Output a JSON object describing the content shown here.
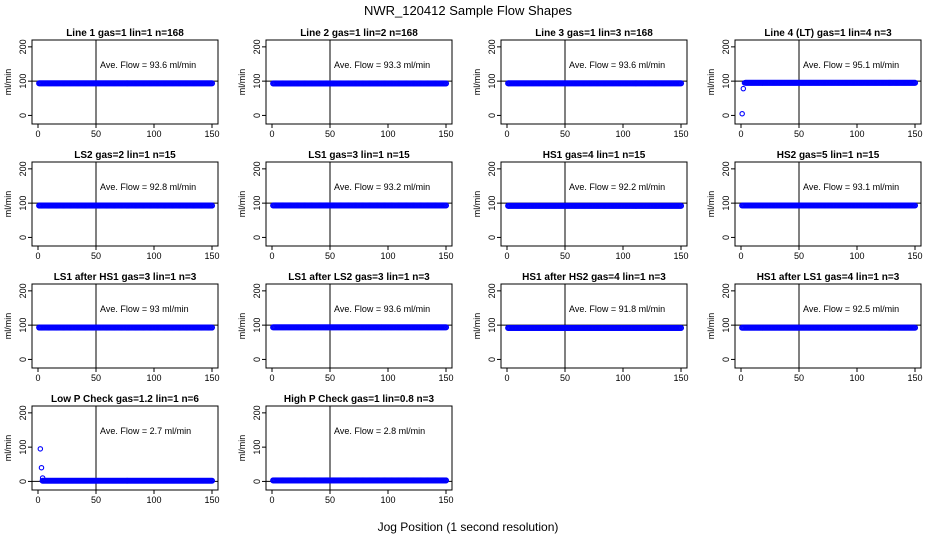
{
  "figure": {
    "title": "NWR_120412  Sample Flow Shapes",
    "xlabel": "Jog Position (1 second resolution)",
    "ylabel": "ml/min",
    "point_color": "#0000ff"
  },
  "chart_data": [
    {
      "type": "scatter",
      "title": "Line 1 gas=1 lin=1 n=168",
      "annotation": "Ave. Flow =  93.6  ml/min",
      "xlim": [
        0,
        150
      ],
      "ylim": [
        -25,
        220
      ],
      "yticks": [
        0,
        100,
        200
      ],
      "xticks": [
        0,
        50,
        100,
        150
      ],
      "vline_x": 50,
      "hline_y": 100,
      "series": [
        {
          "start_x": 1,
          "end_x": 150,
          "level": 93.6,
          "early_points": []
        }
      ]
    },
    {
      "type": "scatter",
      "title": "Line 2 gas=1 lin=2 n=168",
      "annotation": "Ave. Flow =  93.3  ml/min",
      "xlim": [
        0,
        150
      ],
      "ylim": [
        -25,
        220
      ],
      "yticks": [
        0,
        100,
        200
      ],
      "xticks": [
        0,
        50,
        100,
        150
      ],
      "vline_x": 50,
      "hline_y": 100,
      "series": [
        {
          "start_x": 1,
          "end_x": 150,
          "level": 93.3,
          "early_points": []
        }
      ]
    },
    {
      "type": "scatter",
      "title": "Line 3 gas=1 lin=3 n=168",
      "annotation": "Ave. Flow =  93.6  ml/min",
      "xlim": [
        0,
        150
      ],
      "ylim": [
        -25,
        220
      ],
      "yticks": [
        0,
        100,
        200
      ],
      "xticks": [
        0,
        50,
        100,
        150
      ],
      "vline_x": 50,
      "hline_y": 100,
      "series": [
        {
          "start_x": 1,
          "end_x": 150,
          "level": 93.6,
          "early_points": []
        }
      ]
    },
    {
      "type": "scatter",
      "title": "Line 4 (LT) gas=1 lin=4 n=3",
      "annotation": "Ave. Flow =  95.1  ml/min",
      "xlim": [
        0,
        150
      ],
      "ylim": [
        -25,
        220
      ],
      "yticks": [
        0,
        100,
        200
      ],
      "xticks": [
        0,
        50,
        100,
        150
      ],
      "vline_x": 50,
      "hline_y": 100,
      "series": [
        {
          "start_x": 4,
          "end_x": 150,
          "level": 95,
          "early_points": [
            [
              1,
              5
            ],
            [
              2,
              78
            ],
            [
              3,
              95
            ]
          ]
        }
      ]
    },
    {
      "type": "scatter",
      "title": "LS2 gas=2 lin=1 n=15",
      "annotation": "Ave. Flow =  92.8  ml/min",
      "xlim": [
        0,
        150
      ],
      "ylim": [
        -25,
        220
      ],
      "yticks": [
        0,
        100,
        200
      ],
      "xticks": [
        0,
        50,
        100,
        150
      ],
      "vline_x": 50,
      "hline_y": 100,
      "series": [
        {
          "start_x": 1,
          "end_x": 150,
          "level": 92.8,
          "early_points": []
        }
      ]
    },
    {
      "type": "scatter",
      "title": "LS1 gas=3 lin=1 n=15",
      "annotation": "Ave. Flow =  93.2  ml/min",
      "xlim": [
        0,
        150
      ],
      "ylim": [
        -25,
        220
      ],
      "yticks": [
        0,
        100,
        200
      ],
      "xticks": [
        0,
        50,
        100,
        150
      ],
      "vline_x": 50,
      "hline_y": 100,
      "series": [
        {
          "start_x": 1,
          "end_x": 150,
          "level": 93.2,
          "early_points": []
        }
      ]
    },
    {
      "type": "scatter",
      "title": "HS1 gas=4 lin=1 n=15",
      "annotation": "Ave. Flow =  92.2  ml/min",
      "xlim": [
        0,
        150
      ],
      "ylim": [
        -25,
        220
      ],
      "yticks": [
        0,
        100,
        200
      ],
      "xticks": [
        0,
        50,
        100,
        150
      ],
      "vline_x": 50,
      "hline_y": 100,
      "series": [
        {
          "start_x": 1,
          "end_x": 150,
          "level": 92.2,
          "early_points": []
        }
      ]
    },
    {
      "type": "scatter",
      "title": "HS2 gas=5 lin=1 n=15",
      "annotation": "Ave. Flow =  93.1  ml/min",
      "xlim": [
        0,
        150
      ],
      "ylim": [
        -25,
        220
      ],
      "yticks": [
        0,
        100,
        200
      ],
      "xticks": [
        0,
        50,
        100,
        150
      ],
      "vline_x": 50,
      "hline_y": 100,
      "series": [
        {
          "start_x": 1,
          "end_x": 150,
          "level": 93.1,
          "early_points": []
        }
      ]
    },
    {
      "type": "scatter",
      "title": "LS1 after HS1 gas=3 lin=1 n=3",
      "annotation": "Ave. Flow =  93  ml/min",
      "xlim": [
        0,
        150
      ],
      "ylim": [
        -25,
        220
      ],
      "yticks": [
        0,
        100,
        200
      ],
      "xticks": [
        0,
        50,
        100,
        150
      ],
      "vline_x": 50,
      "hline_y": 100,
      "series": [
        {
          "start_x": 1,
          "end_x": 150,
          "level": 93,
          "early_points": []
        }
      ]
    },
    {
      "type": "scatter",
      "title": "LS1 after LS2 gas=3 lin=1 n=3",
      "annotation": "Ave. Flow =  93.6  ml/min",
      "xlim": [
        0,
        150
      ],
      "ylim": [
        -25,
        220
      ],
      "yticks": [
        0,
        100,
        200
      ],
      "xticks": [
        0,
        50,
        100,
        150
      ],
      "vline_x": 50,
      "hline_y": 100,
      "series": [
        {
          "start_x": 1,
          "end_x": 150,
          "level": 93.6,
          "early_points": []
        }
      ]
    },
    {
      "type": "scatter",
      "title": "HS1 after HS2 gas=4 lin=1 n=3",
      "annotation": "Ave. Flow =  91.8  ml/min",
      "xlim": [
        0,
        150
      ],
      "ylim": [
        -25,
        220
      ],
      "yticks": [
        0,
        100,
        200
      ],
      "xticks": [
        0,
        50,
        100,
        150
      ],
      "vline_x": 50,
      "hline_y": 100,
      "series": [
        {
          "start_x": 1,
          "end_x": 150,
          "level": 91.8,
          "early_points": []
        }
      ]
    },
    {
      "type": "scatter",
      "title": "HS1 after LS1 gas=4 lin=1 n=3",
      "annotation": "Ave. Flow =  92.5  ml/min",
      "xlim": [
        0,
        150
      ],
      "ylim": [
        -25,
        220
      ],
      "yticks": [
        0,
        100,
        200
      ],
      "xticks": [
        0,
        50,
        100,
        150
      ],
      "vline_x": 50,
      "hline_y": 100,
      "series": [
        {
          "start_x": 1,
          "end_x": 150,
          "level": 92.5,
          "early_points": []
        }
      ]
    },
    {
      "type": "scatter",
      "title": "Low P Check gas=1.2 lin=1 n=6",
      "annotation": "Ave. Flow =  2.7  ml/min",
      "xlim": [
        0,
        150
      ],
      "ylim": [
        -25,
        220
      ],
      "yticks": [
        0,
        100,
        200
      ],
      "xticks": [
        0,
        50,
        100,
        150
      ],
      "vline_x": 50,
      "hline_y": 0,
      "series": [
        {
          "start_x": 4,
          "end_x": 150,
          "level": 2,
          "early_points": [
            [
              2,
              95
            ],
            [
              3,
              40
            ],
            [
              4,
              10
            ]
          ]
        }
      ]
    },
    {
      "type": "scatter",
      "title": "High P Check gas=1 lin=0.8 n=3",
      "annotation": "Ave. Flow =  2.8  ml/min",
      "xlim": [
        0,
        150
      ],
      "ylim": [
        -25,
        220
      ],
      "yticks": [
        0,
        100,
        200
      ],
      "xticks": [
        0,
        50,
        100,
        150
      ],
      "vline_x": 50,
      "hline_y": 0,
      "series": [
        {
          "start_x": 1,
          "end_x": 150,
          "level": 2.8,
          "early_points": []
        }
      ]
    }
  ]
}
